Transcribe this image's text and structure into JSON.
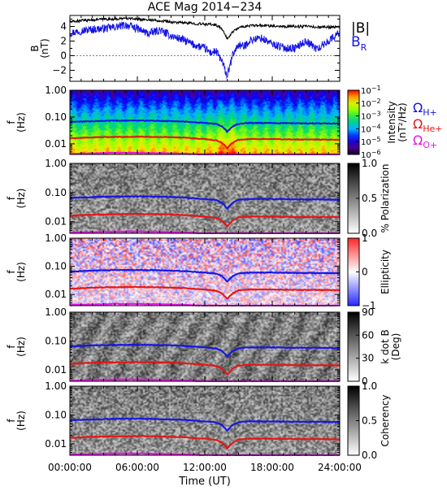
{
  "title": "ACE Mag 2014−234",
  "time_axis": {
    "label": "Time (UT)",
    "ticks": [
      "00:00:00",
      "06:00:00",
      "12:00:00",
      "18:00:00",
      "24:00:00"
    ],
    "range_hours": [
      0,
      24
    ]
  },
  "chart_data": [
    {
      "type": "line",
      "panel": "field",
      "ylabel": [
        "B",
        "(nT)"
      ],
      "ylim": [
        -3.5,
        5.5
      ],
      "yticks": [
        -2,
        0,
        2,
        4
      ],
      "ytick_labels": [
        "−2",
        "0",
        "2",
        "4"
      ],
      "x_hours": [
        0,
        1,
        2,
        3,
        4,
        5,
        6,
        7,
        8,
        9,
        10,
        11,
        12,
        12.5,
        13,
        13.5,
        14,
        14.5,
        15,
        15.5,
        16,
        17,
        18,
        19,
        20,
        21,
        22,
        23,
        24
      ],
      "series": [
        {
          "name": "|B|",
          "color": "#000000",
          "values": [
            4.6,
            4.8,
            4.9,
            5.0,
            5.0,
            5.1,
            5.0,
            4.9,
            4.8,
            4.6,
            4.5,
            4.4,
            4.3,
            4.3,
            4.2,
            3.7,
            2.3,
            3.3,
            3.8,
            4.0,
            4.1,
            4.1,
            4.1,
            4.0,
            4.0,
            4.0,
            3.9,
            3.9,
            3.9
          ]
        },
        {
          "name": "B",
          "name_subscript": "R",
          "color": "#1414e6",
          "values": [
            3.1,
            3.4,
            3.6,
            3.7,
            3.9,
            4.2,
            3.7,
            3.0,
            3.5,
            2.7,
            2.2,
            1.5,
            1.0,
            0.4,
            0.6,
            -0.7,
            -2.8,
            0.2,
            1.5,
            1.2,
            2.1,
            2.4,
            1.6,
            1.1,
            1.0,
            2.0,
            0.9,
            2.0,
            3.2
          ]
        }
      ]
    },
    {
      "type": "heatmap",
      "panel": "intensity",
      "ylabel": [
        "f",
        "(Hz)"
      ],
      "yscale": "log",
      "ylim": [
        0.004,
        1.0
      ],
      "yticks": [
        0.01,
        0.1,
        1.0
      ],
      "ytick_labels": [
        "0.01",
        "0.10",
        "1.00"
      ],
      "colorbar": {
        "label": [
          "Intensity",
          "(nT²/Hz)"
        ],
        "scale": "log",
        "range": [
          1e-06,
          0.1
        ],
        "tick_labels": [
          {
            "base": "10",
            "exp": "−1",
            "value": 0.1
          },
          {
            "base": "10",
            "exp": "−2",
            "value": 0.01
          },
          {
            "base": "10",
            "exp": "−3",
            "value": 0.001
          },
          {
            "base": "10",
            "exp": "−4",
            "value": 0.0001
          },
          {
            "base": "10",
            "exp": "−5",
            "value": 1e-05
          },
          {
            "base": "10",
            "exp": "−6",
            "value": 1e-06
          }
        ],
        "colormap": "rainbow"
      },
      "gyrofrequency_legend": [
        {
          "label": "Ω",
          "sub": "H+",
          "color": "#1414e6"
        },
        {
          "label": "Ω",
          "sub": "He+",
          "color": "#e61414"
        },
        {
          "label": "Ω",
          "sub": "O+",
          "color": "#e614e6"
        }
      ]
    },
    {
      "type": "heatmap",
      "panel": "polarization",
      "ylabel": [
        "f",
        "(Hz)"
      ],
      "yscale": "log",
      "ylim": [
        0.004,
        1.0
      ],
      "yticks": [
        0.01,
        0.1,
        1.0
      ],
      "ytick_labels": [
        "0.01",
        "0.10",
        "1.00"
      ],
      "colorbar": {
        "label": [
          "% Polarization"
        ],
        "range": [
          0,
          1
        ],
        "ticks": [
          0,
          0.5,
          1.0
        ],
        "tick_labels": [
          "0.0",
          "0.5",
          "1.0"
        ],
        "colormap": "gray"
      }
    },
    {
      "type": "heatmap",
      "panel": "ellipticity",
      "ylabel": [
        "f",
        "(Hz)"
      ],
      "yscale": "log",
      "ylim": [
        0.004,
        1.0
      ],
      "yticks": [
        0.01,
        0.1,
        1.0
      ],
      "ytick_labels": [
        "0.01",
        "0.10",
        "1.00"
      ],
      "colorbar": {
        "label": [
          "Ellipticity"
        ],
        "range": [
          -1,
          1
        ],
        "ticks": [
          -1,
          0,
          1
        ],
        "tick_labels": [
          "−1",
          "0",
          "1"
        ],
        "colormap": "bwr"
      }
    },
    {
      "type": "heatmap",
      "panel": "kdotb",
      "ylabel": [
        "f",
        "(Hz)"
      ],
      "yscale": "log",
      "ylim": [
        0.004,
        1.0
      ],
      "yticks": [
        0.01,
        0.1,
        1.0
      ],
      "ytick_labels": [
        "0.01",
        "0.10",
        "1.00"
      ],
      "colorbar": {
        "label": [
          "k dot B",
          "(Deg)"
        ],
        "range": [
          0,
          90
        ],
        "ticks": [
          0,
          30,
          60,
          90
        ],
        "tick_labels": [
          "0",
          "30",
          "60",
          "90"
        ],
        "colormap": "gray"
      }
    },
    {
      "type": "heatmap",
      "panel": "coherency",
      "ylabel": [
        "f",
        "(Hz)"
      ],
      "yscale": "log",
      "ylim": [
        0.004,
        1.0
      ],
      "yticks": [
        0.01,
        0.1,
        1.0
      ],
      "ytick_labels": [
        "0.01",
        "0.10",
        "1.00"
      ],
      "colorbar": {
        "label": [
          "Coherency"
        ],
        "range": [
          0,
          1
        ],
        "ticks": [
          0,
          0.5,
          1.0
        ],
        "tick_labels": [
          "0.0",
          "0.5",
          "1.0"
        ],
        "colormap": "gray"
      }
    }
  ],
  "gyrofrequencies": {
    "x_hours": [
      0,
      2,
      4,
      6,
      8,
      10,
      12,
      13,
      13.5,
      14,
      14.5,
      15,
      16,
      18,
      20,
      22,
      24
    ],
    "series": [
      {
        "name": "H+",
        "color": "#1414e6",
        "values": [
          0.065,
          0.07,
          0.073,
          0.074,
          0.072,
          0.068,
          0.06,
          0.055,
          0.045,
          0.028,
          0.045,
          0.056,
          0.06,
          0.06,
          0.058,
          0.058,
          0.057
        ]
      },
      {
        "name": "He+",
        "color": "#e61414",
        "values": [
          0.016,
          0.0175,
          0.018,
          0.0185,
          0.018,
          0.017,
          0.015,
          0.0135,
          0.011,
          0.0068,
          0.011,
          0.014,
          0.015,
          0.015,
          0.0145,
          0.0145,
          0.0142
        ]
      },
      {
        "name": "O+",
        "color": "#e614e6",
        "values": [
          0.0042,
          0.0044,
          0.0046,
          0.0046,
          0.0045,
          0.0043,
          0.004,
          0.004,
          0.004,
          0.004,
          0.004,
          0.004,
          0.004,
          0.004,
          0.004,
          0.004,
          0.004
        ]
      }
    ]
  }
}
